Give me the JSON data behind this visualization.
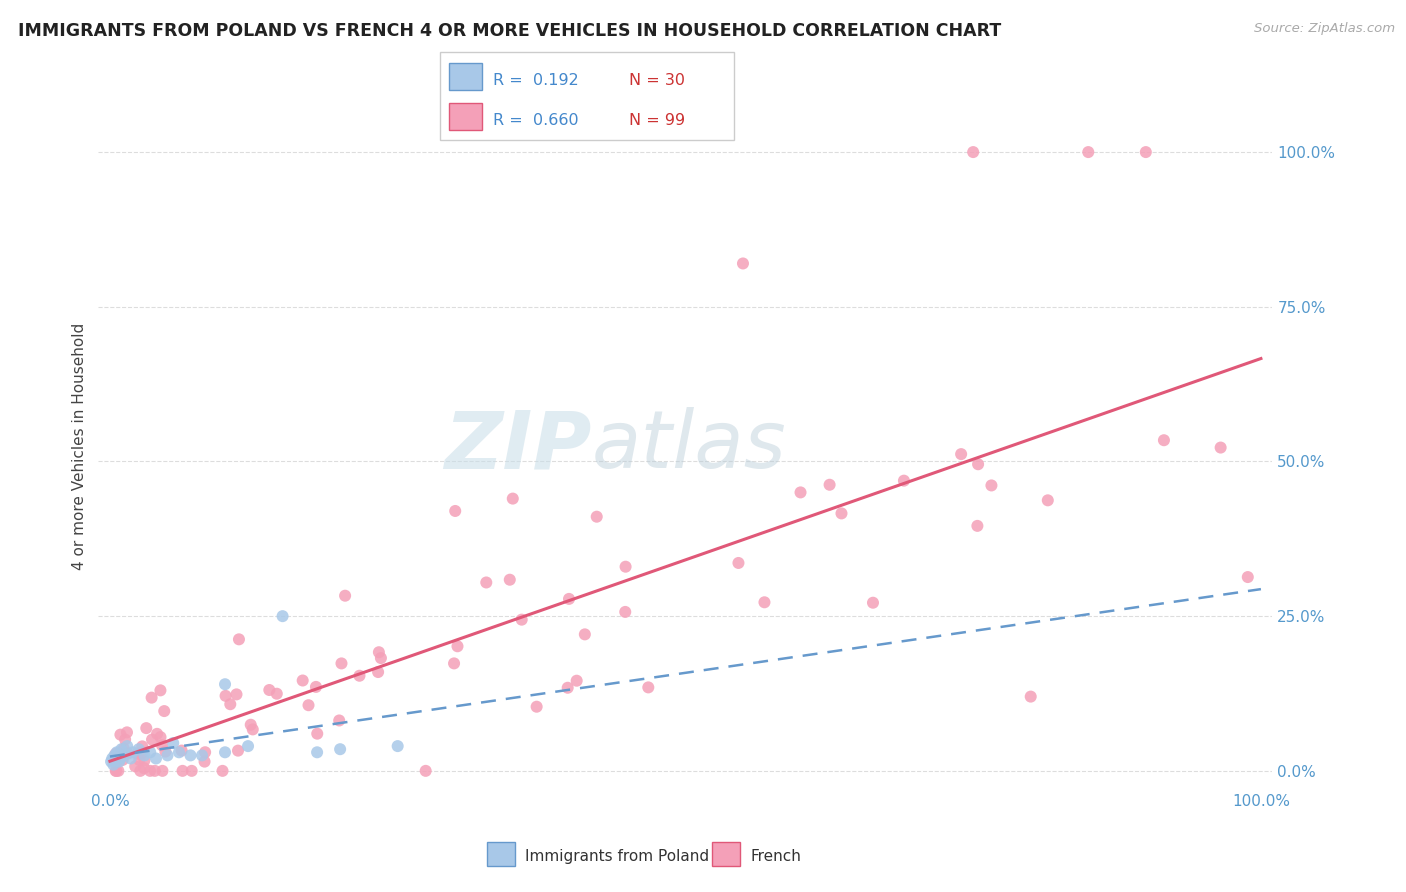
{
  "title": "IMMIGRANTS FROM POLAND VS FRENCH 4 OR MORE VEHICLES IN HOUSEHOLD CORRELATION CHART",
  "source": "Source: ZipAtlas.com",
  "ylabel": "4 or more Vehicles in Household",
  "legend_label1": "Immigrants from Poland",
  "legend_label2": "French",
  "legend_r1": "R =  0.192",
  "legend_n1": "N = 30",
  "legend_r2": "R =  0.660",
  "legend_n2": "N = 99",
  "color_poland": "#a8c8e8",
  "color_french": "#f4a0b8",
  "trendline_color_poland": "#6699cc",
  "trendline_color_french": "#e05878",
  "watermark_zip": "ZIP",
  "watermark_atlas": "atlas",
  "ytick_labels": [
    "0.0%",
    "25.0%",
    "50.0%",
    "75.0%",
    "100.0%"
  ],
  "ytick_values": [
    0,
    25,
    50,
    75,
    100
  ],
  "tick_color": "#5599cc",
  "grid_color": "#dddddd",
  "xlim": [
    -1,
    101
  ],
  "ylim": [
    -3,
    108
  ]
}
